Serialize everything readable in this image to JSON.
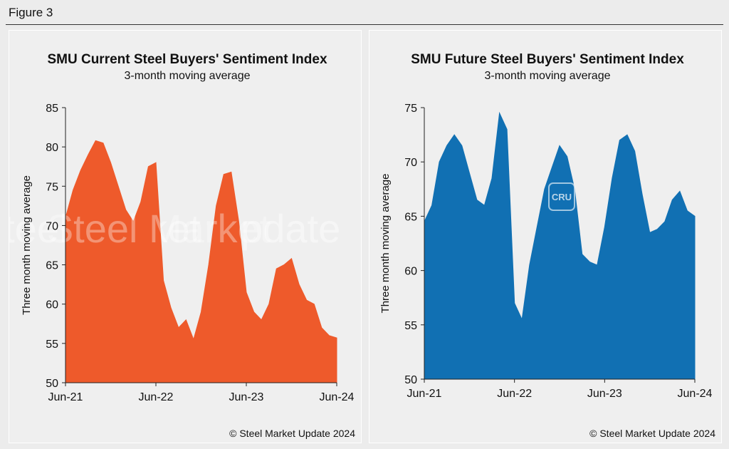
{
  "figure_label": "Figure 3",
  "watermark": {
    "brand": "Steel Market",
    "suffix": "Update",
    "badge": "CRU"
  },
  "chart_data": [
    {
      "type": "area",
      "title": "SMU Current Steel Buyers' Sentiment Index",
      "subtitle": "3-month moving average",
      "ylabel": "Three month moving average",
      "xlabel": "",
      "ylim": [
        50,
        85
      ],
      "yticks": [
        50,
        55,
        60,
        65,
        70,
        75,
        80,
        85
      ],
      "xtick_labels": [
        "Jun-21",
        "Jun-22",
        "Jun-23",
        "Jun-24"
      ],
      "color": "#ee5a2b",
      "credit": "© Steel Market Update 2024",
      "x": [
        "Jun-21",
        "Jul-21",
        "Aug-21",
        "Sep-21",
        "Oct-21",
        "Nov-21",
        "Dec-21",
        "Jan-22",
        "Feb-22",
        "Mar-22",
        "Apr-22",
        "May-22",
        "Jun-22",
        "Jul-22",
        "Aug-22",
        "Sep-22",
        "Oct-22",
        "Nov-22",
        "Dec-22",
        "Jan-23",
        "Feb-23",
        "Mar-23",
        "Apr-23",
        "May-23",
        "Jun-23",
        "Jul-23",
        "Aug-23",
        "Sep-23",
        "Oct-23",
        "Nov-23",
        "Dec-23",
        "Jan-24",
        "Feb-24",
        "Mar-24",
        "Apr-24",
        "May-24",
        "Jun-24"
      ],
      "values": [
        71,
        74.5,
        77,
        79,
        80.8,
        80.5,
        78,
        75,
        72,
        70.5,
        73,
        77.5,
        78,
        63,
        59.5,
        57,
        58,
        55.5,
        59,
        65,
        72.5,
        76.5,
        76.8,
        70.5,
        61.5,
        59,
        58,
        60,
        64.5,
        65,
        65.8,
        62.5,
        60.5,
        60,
        57,
        56,
        55.7
      ]
    },
    {
      "type": "area",
      "title": "SMU Future Steel Buyers' Sentiment Index",
      "subtitle": "3-month moving average",
      "ylabel": "Three month moving average",
      "xlabel": "",
      "ylim": [
        50,
        75
      ],
      "yticks": [
        50,
        55,
        60,
        65,
        70,
        75
      ],
      "xtick_labels": [
        "Jun-21",
        "Jun-22",
        "Jun-23",
        "Jun-24"
      ],
      "color": "#1170b3",
      "credit": "© Steel Market Update 2024",
      "x": [
        "Jun-21",
        "Jul-21",
        "Aug-21",
        "Sep-21",
        "Oct-21",
        "Nov-21",
        "Dec-21",
        "Jan-22",
        "Feb-22",
        "Mar-22",
        "Apr-22",
        "May-22",
        "Jun-22",
        "Jul-22",
        "Aug-22",
        "Sep-22",
        "Oct-22",
        "Nov-22",
        "Dec-22",
        "Jan-23",
        "Feb-23",
        "Mar-23",
        "Apr-23",
        "May-23",
        "Jun-23",
        "Jul-23",
        "Aug-23",
        "Sep-23",
        "Oct-23",
        "Nov-23",
        "Dec-23",
        "Jan-24",
        "Feb-24",
        "Mar-24",
        "Apr-24",
        "May-24",
        "Jun-24"
      ],
      "values": [
        64.5,
        66,
        70,
        71.5,
        72.5,
        71.5,
        69,
        66.5,
        66,
        68.5,
        74.5,
        73,
        57,
        55.5,
        60.5,
        64,
        67.5,
        69.5,
        71.5,
        70.5,
        67.5,
        61.5,
        60.8,
        60.5,
        64,
        68.5,
        72,
        72.5,
        71,
        67,
        63.5,
        63.8,
        64.5,
        66.5,
        67.3,
        65.5,
        65
      ]
    }
  ]
}
